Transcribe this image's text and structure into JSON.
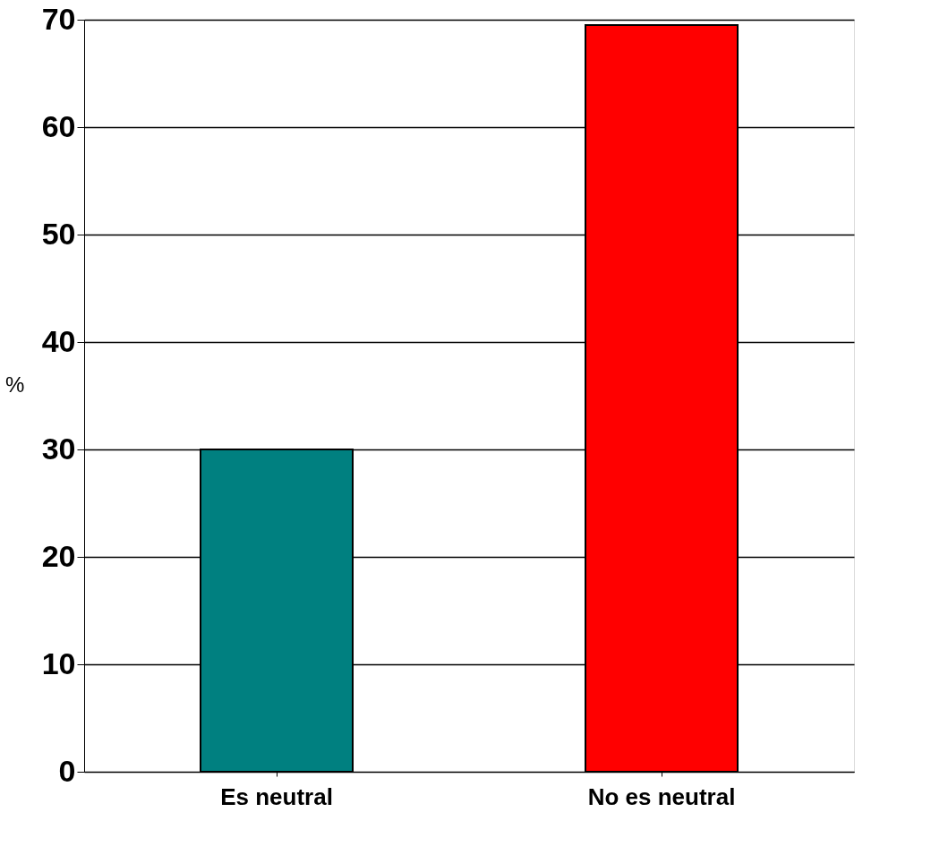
{
  "chart_data": {
    "type": "bar",
    "ylabel": "%",
    "categories": [
      "Es neutral",
      "No es neutral"
    ],
    "values": [
      30,
      69.5
    ],
    "colors": [
      "#008080",
      "#ff0000"
    ],
    "ylim": [
      0,
      70
    ],
    "yticks": [
      0,
      10,
      20,
      30,
      40,
      50,
      60,
      70
    ],
    "grid": "y"
  }
}
